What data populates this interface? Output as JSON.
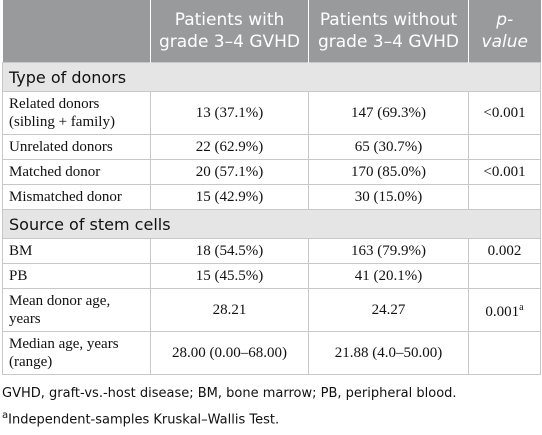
{
  "table": {
    "header": [
      "",
      "Patients with grade 3–4 GVHD",
      "Patients without grade 3–4 GVHD",
      "p-value"
    ],
    "sections": [
      {
        "title": "Type of donors",
        "rows": [
          {
            "label": "Related donors (sibling + family)",
            "with": "13 (37.1%)",
            "without": "147 (69.3%)",
            "p": "<0.001"
          },
          {
            "label": "Unrelated donors",
            "with": "22 (62.9%)",
            "without": "65 (30.7%)",
            "p": ""
          },
          {
            "label": "Matched donor",
            "with": "20 (57.1%)",
            "without": "170 (85.0%)",
            "p": "<0.001"
          },
          {
            "label": "Mismatched donor",
            "with": "15 (42.9%)",
            "without": "30 (15.0%)",
            "p": ""
          }
        ]
      },
      {
        "title": "Source of stem cells",
        "rows": [
          {
            "label": "BM",
            "with": "18 (54.5%)",
            "without": "163 (79.9%)",
            "p": "0.002"
          },
          {
            "label": "PB",
            "with": "15 (45.5%)",
            "without": "41 (20.1%)",
            "p": ""
          },
          {
            "label": "Mean donor age, years",
            "with": "28.21",
            "without": "24.27",
            "p": "0.001",
            "p_note": "a"
          },
          {
            "label": "Median age, years (range)",
            "with": "28.00 (0.00–68.00)",
            "without": "21.88 (4.0–50.00)",
            "p": ""
          }
        ]
      }
    ]
  },
  "footnotes": [
    {
      "text": "GVHD, graft-vs.-host disease; BM, bone marrow; PB, peripheral blood."
    },
    {
      "mark": "a",
      "text": "Independent-samples Kruskal–Wallis Test."
    }
  ]
}
